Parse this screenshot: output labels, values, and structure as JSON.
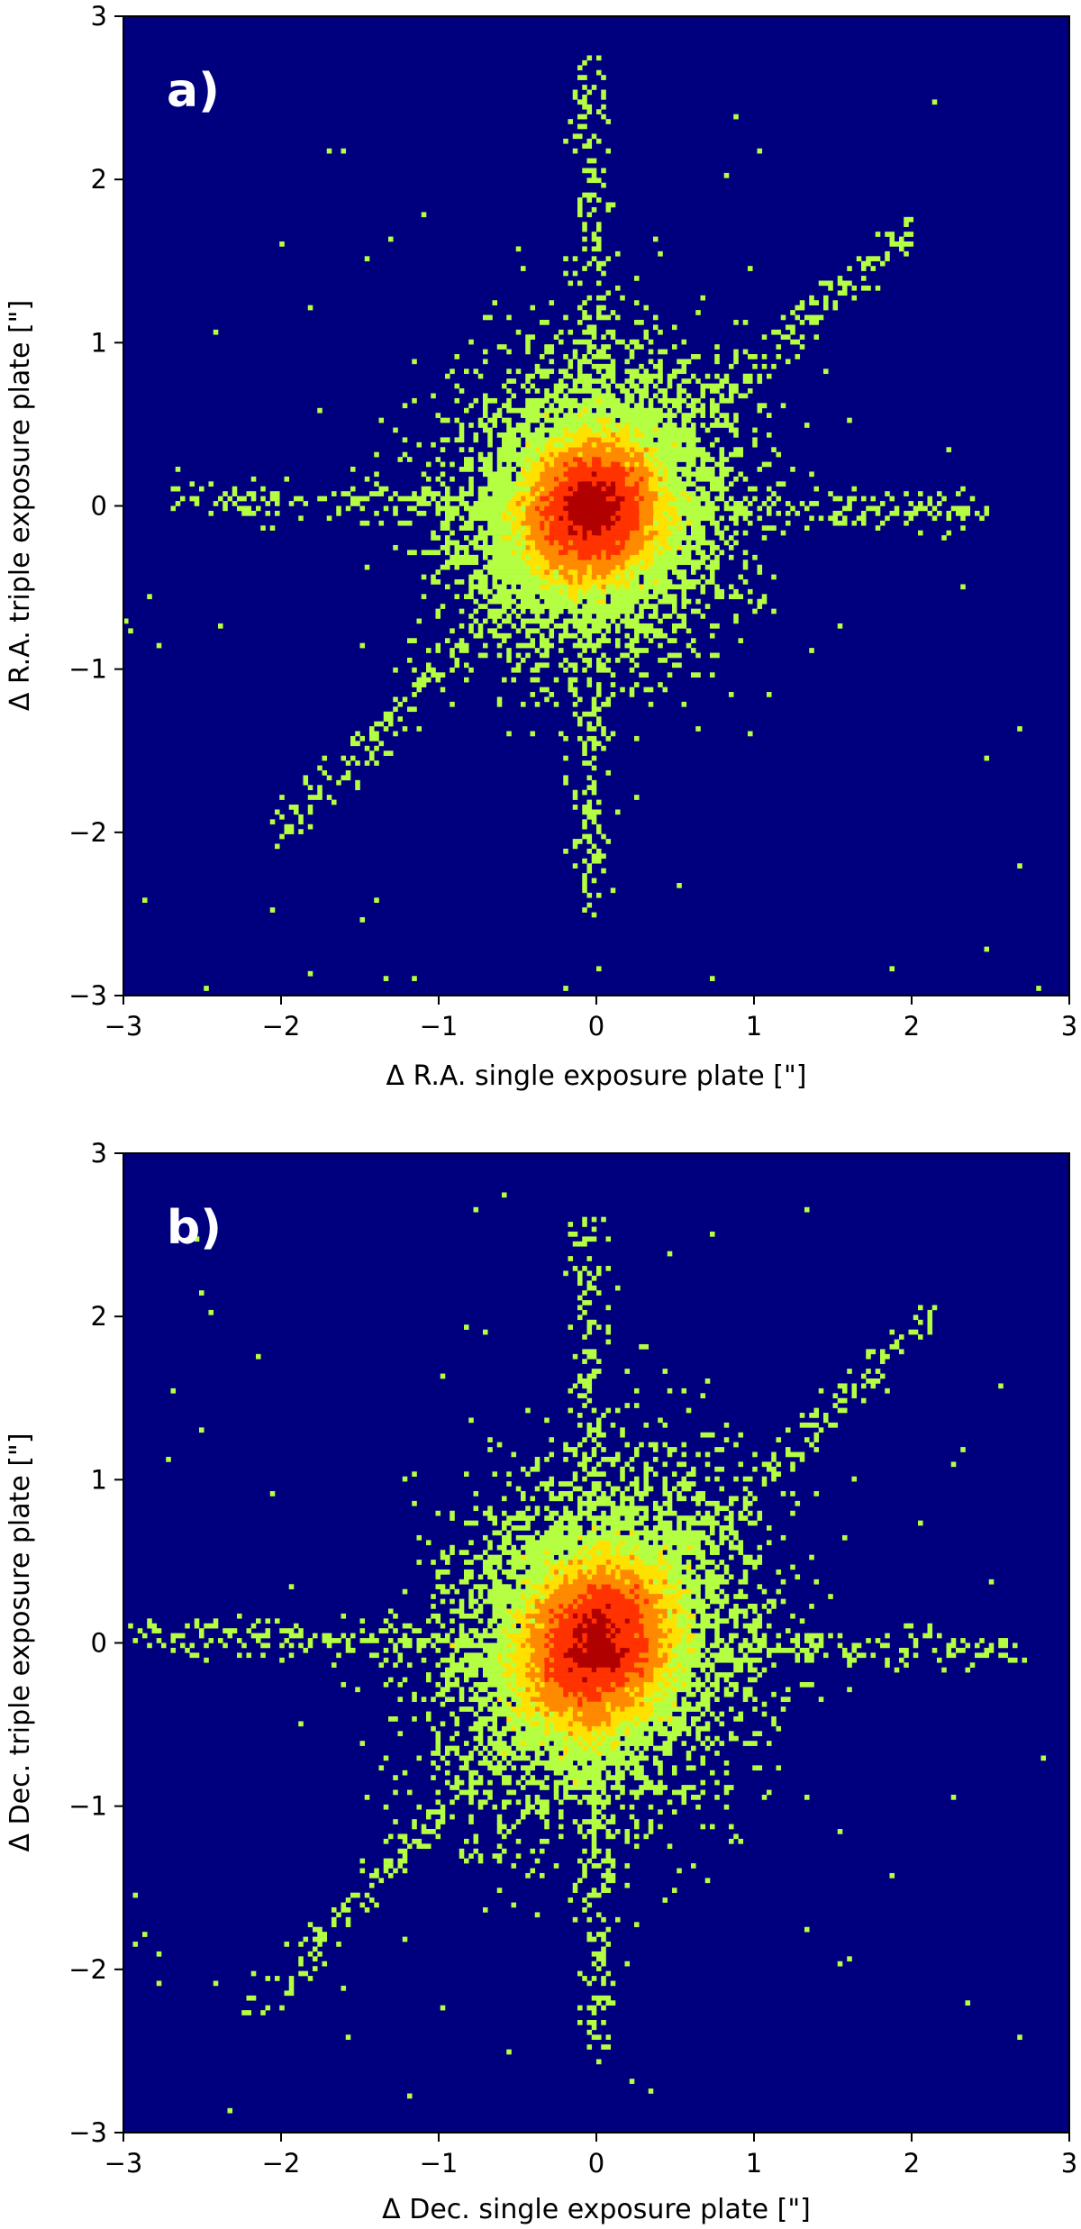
{
  "chart_data": [
    {
      "type": "heatmap",
      "panel_label": "a)",
      "xlabel": "Δ R.A. single exposure plate [\"]",
      "ylabel": "Δ R.A. triple exposure plate [\"]",
      "xlim": [
        -3,
        3
      ],
      "ylim": [
        -3,
        3
      ],
      "xticks": [
        "−3",
        "−2",
        "−1",
        "0",
        "1",
        "2",
        "3"
      ],
      "yticks": [
        "−3",
        "−2",
        "−1",
        "0",
        "1",
        "2",
        "3"
      ],
      "xtick_values": [
        -3,
        -2,
        -1,
        0,
        1,
        2,
        3
      ],
      "ytick_values": [
        -3,
        -2,
        -1,
        0,
        1,
        2,
        3
      ],
      "grid": false,
      "background_color": "#00007f",
      "colormap": [
        "#00007f",
        "#b5ff42",
        "#ffe100",
        "#ff8a00",
        "#ff3200",
        "#b00000"
      ],
      "density_center": [
        -0.03,
        -0.02
      ],
      "density_spread": [
        0.2,
        0.2
      ],
      "density_correlation": 0.1,
      "outlier_streaks": [
        {
          "from": [
            0,
            0
          ],
          "to": [
            2,
            1.7
          ]
        },
        {
          "from": [
            0,
            0
          ],
          "to": [
            -2,
            -2
          ]
        },
        {
          "from": [
            0,
            0
          ],
          "to": [
            -0.05,
            2.7
          ]
        },
        {
          "from": [
            0,
            0
          ],
          "to": [
            -0.05,
            -2.5
          ]
        },
        {
          "from": [
            0,
            0
          ],
          "to": [
            -2.7,
            0.05
          ]
        },
        {
          "from": [
            0,
            0
          ],
          "to": [
            2.5,
            -0.05
          ]
        }
      ]
    },
    {
      "type": "heatmap",
      "panel_label": "b)",
      "xlabel": "Δ Dec. single exposure plate [\"]",
      "ylabel": "Δ Dec. triple exposure plate [\"]",
      "xlim": [
        -3,
        3
      ],
      "ylim": [
        -3,
        3
      ],
      "xticks": [
        "−3",
        "−2",
        "−1",
        "0",
        "1",
        "2",
        "3"
      ],
      "yticks": [
        "−3",
        "−2",
        "−1",
        "0",
        "1",
        "2",
        "3"
      ],
      "xtick_values": [
        -3,
        -2,
        -1,
        0,
        1,
        2,
        3
      ],
      "ytick_values": [
        -3,
        -2,
        -1,
        0,
        1,
        2,
        3
      ],
      "grid": false,
      "background_color": "#00007f",
      "colormap": [
        "#00007f",
        "#b5ff42",
        "#ffe100",
        "#ff8a00",
        "#ff3200",
        "#b00000"
      ],
      "density_center": [
        0.0,
        0.0
      ],
      "density_spread": [
        0.22,
        0.24
      ],
      "density_correlation": 0.15,
      "outlier_streaks": [
        {
          "from": [
            0,
            0
          ],
          "to": [
            2.1,
            2.0
          ]
        },
        {
          "from": [
            0,
            0
          ],
          "to": [
            -2.2,
            -2.3
          ]
        },
        {
          "from": [
            0,
            0
          ],
          "to": [
            -0.05,
            2.6
          ]
        },
        {
          "from": [
            0,
            0
          ],
          "to": [
            0.0,
            -2.5
          ]
        },
        {
          "from": [
            0,
            0
          ],
          "to": [
            -2.9,
            0.05
          ]
        },
        {
          "from": [
            0,
            0
          ],
          "to": [
            2.7,
            -0.05
          ]
        }
      ]
    }
  ]
}
